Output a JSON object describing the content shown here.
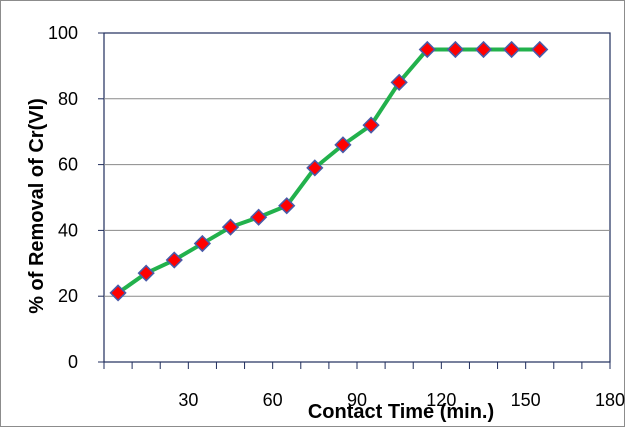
{
  "chart_data": {
    "type": "line",
    "title": "",
    "xlabel": "Contact Time (min.)",
    "ylabel": "% of Removal of Cr(VI)",
    "xlim": [
      0,
      180
    ],
    "ylim": [
      0,
      100
    ],
    "x_ticks": [
      30,
      60,
      90,
      120,
      150,
      180
    ],
    "y_ticks": [
      0,
      20,
      40,
      60,
      80,
      100
    ],
    "grid": "horizontal",
    "legend": "none",
    "series": [
      {
        "x": [
          5,
          15,
          25,
          35,
          45,
          55,
          65,
          75,
          85,
          95,
          105,
          115,
          125,
          135,
          145,
          155
        ],
        "y": [
          21,
          27,
          31,
          36,
          41,
          44,
          47.5,
          59,
          66,
          72,
          85,
          95,
          95,
          95,
          95,
          95
        ],
        "line_color": "#22b14c",
        "marker": "diamond",
        "marker_fill": "#ff0000",
        "marker_edge": "#4a5aa8"
      }
    ]
  }
}
